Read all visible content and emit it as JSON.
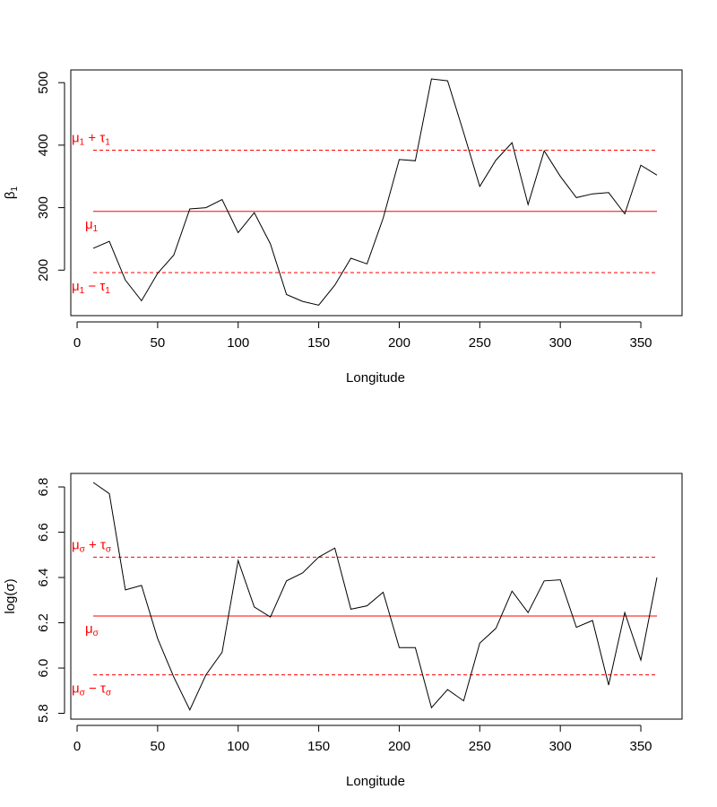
{
  "chart_data": [
    {
      "type": "line",
      "xlabel": "Longitude",
      "ylabel": {
        "base": "β",
        "sub": "1"
      },
      "xlim": [
        10,
        360
      ],
      "ylim": [
        143,
        506
      ],
      "xticks": [
        0,
        50,
        100,
        150,
        200,
        250,
        300,
        350
      ],
      "yticks": [
        200,
        300,
        400,
        500
      ],
      "x": [
        10,
        20,
        30,
        40,
        50,
        60,
        70,
        80,
        90,
        100,
        110,
        120,
        130,
        140,
        150,
        160,
        170,
        180,
        190,
        200,
        210,
        220,
        230,
        240,
        250,
        260,
        270,
        280,
        290,
        300,
        310,
        320,
        330,
        340,
        350,
        360
      ],
      "series": [
        {
          "values": [
            235,
            246,
            184,
            151,
            195,
            224,
            298,
            300,
            313,
            260,
            292,
            242,
            161,
            150,
            144,
            176,
            219,
            210,
            283,
            377,
            375,
            506,
            503,
            420,
            334,
            376,
            404,
            305,
            391,
            350,
            316,
            322,
            324,
            290,
            368,
            352
          ],
          "color": "#000000"
        }
      ],
      "reference_lines": [
        {
          "y": 294,
          "style": "solid",
          "color": "#ff0000",
          "label": {
            "base": "μ",
            "sub": "1",
            "sign": "",
            "tau": ""
          }
        },
        {
          "y": 392,
          "style": "dashed",
          "color": "#ff0000",
          "label": {
            "base": "μ",
            "sub": "1",
            "sign": " + ",
            "tau": "τ"
          }
        },
        {
          "y": 196,
          "style": "dashed",
          "color": "#ff0000",
          "label": {
            "base": "μ",
            "sub": "1",
            "sign": " − ",
            "tau": "τ"
          }
        }
      ],
      "grid": false
    },
    {
      "type": "line",
      "xlabel": "Longitude",
      "ylabel": {
        "base": "log(σ)",
        "sub": ""
      },
      "xlim": [
        10,
        360
      ],
      "ylim": [
        5.81,
        6.82
      ],
      "xticks": [
        0,
        50,
        100,
        150,
        200,
        250,
        300,
        350
      ],
      "yticks": [
        5.8,
        6.0,
        6.2,
        6.4,
        6.6,
        6.8
      ],
      "x": [
        10,
        20,
        30,
        40,
        50,
        60,
        70,
        80,
        90,
        100,
        110,
        120,
        130,
        140,
        150,
        160,
        170,
        180,
        190,
        200,
        210,
        220,
        230,
        240,
        250,
        260,
        270,
        280,
        290,
        300,
        310,
        320,
        330,
        340,
        350,
        360
      ],
      "series": [
        {
          "values": [
            6.82,
            6.77,
            6.345,
            6.365,
            6.13,
            5.96,
            5.815,
            5.97,
            6.07,
            6.475,
            6.27,
            6.225,
            6.385,
            6.42,
            6.49,
            6.53,
            6.26,
            6.275,
            6.335,
            6.09,
            6.09,
            5.825,
            5.905,
            5.855,
            6.11,
            6.175,
            6.34,
            6.245,
            6.385,
            6.39,
            6.18,
            6.21,
            5.925,
            6.245,
            6.035,
            6.4
          ],
          "color": "#000000"
        }
      ],
      "reference_lines": [
        {
          "y": 6.23,
          "style": "solid",
          "color": "#ff0000",
          "label": {
            "base": "μ",
            "sub": "σ",
            "sign": "",
            "tau": ""
          }
        },
        {
          "y": 6.49,
          "style": "dashed",
          "color": "#ff0000",
          "label": {
            "base": "μ",
            "sub": "σ",
            "sign": " + ",
            "tau": "τ"
          }
        },
        {
          "y": 5.97,
          "style": "dashed",
          "color": "#ff0000",
          "label": {
            "base": "μ",
            "sub": "σ",
            "sign": " − ",
            "tau": "τ"
          }
        }
      ],
      "grid": false
    }
  ]
}
